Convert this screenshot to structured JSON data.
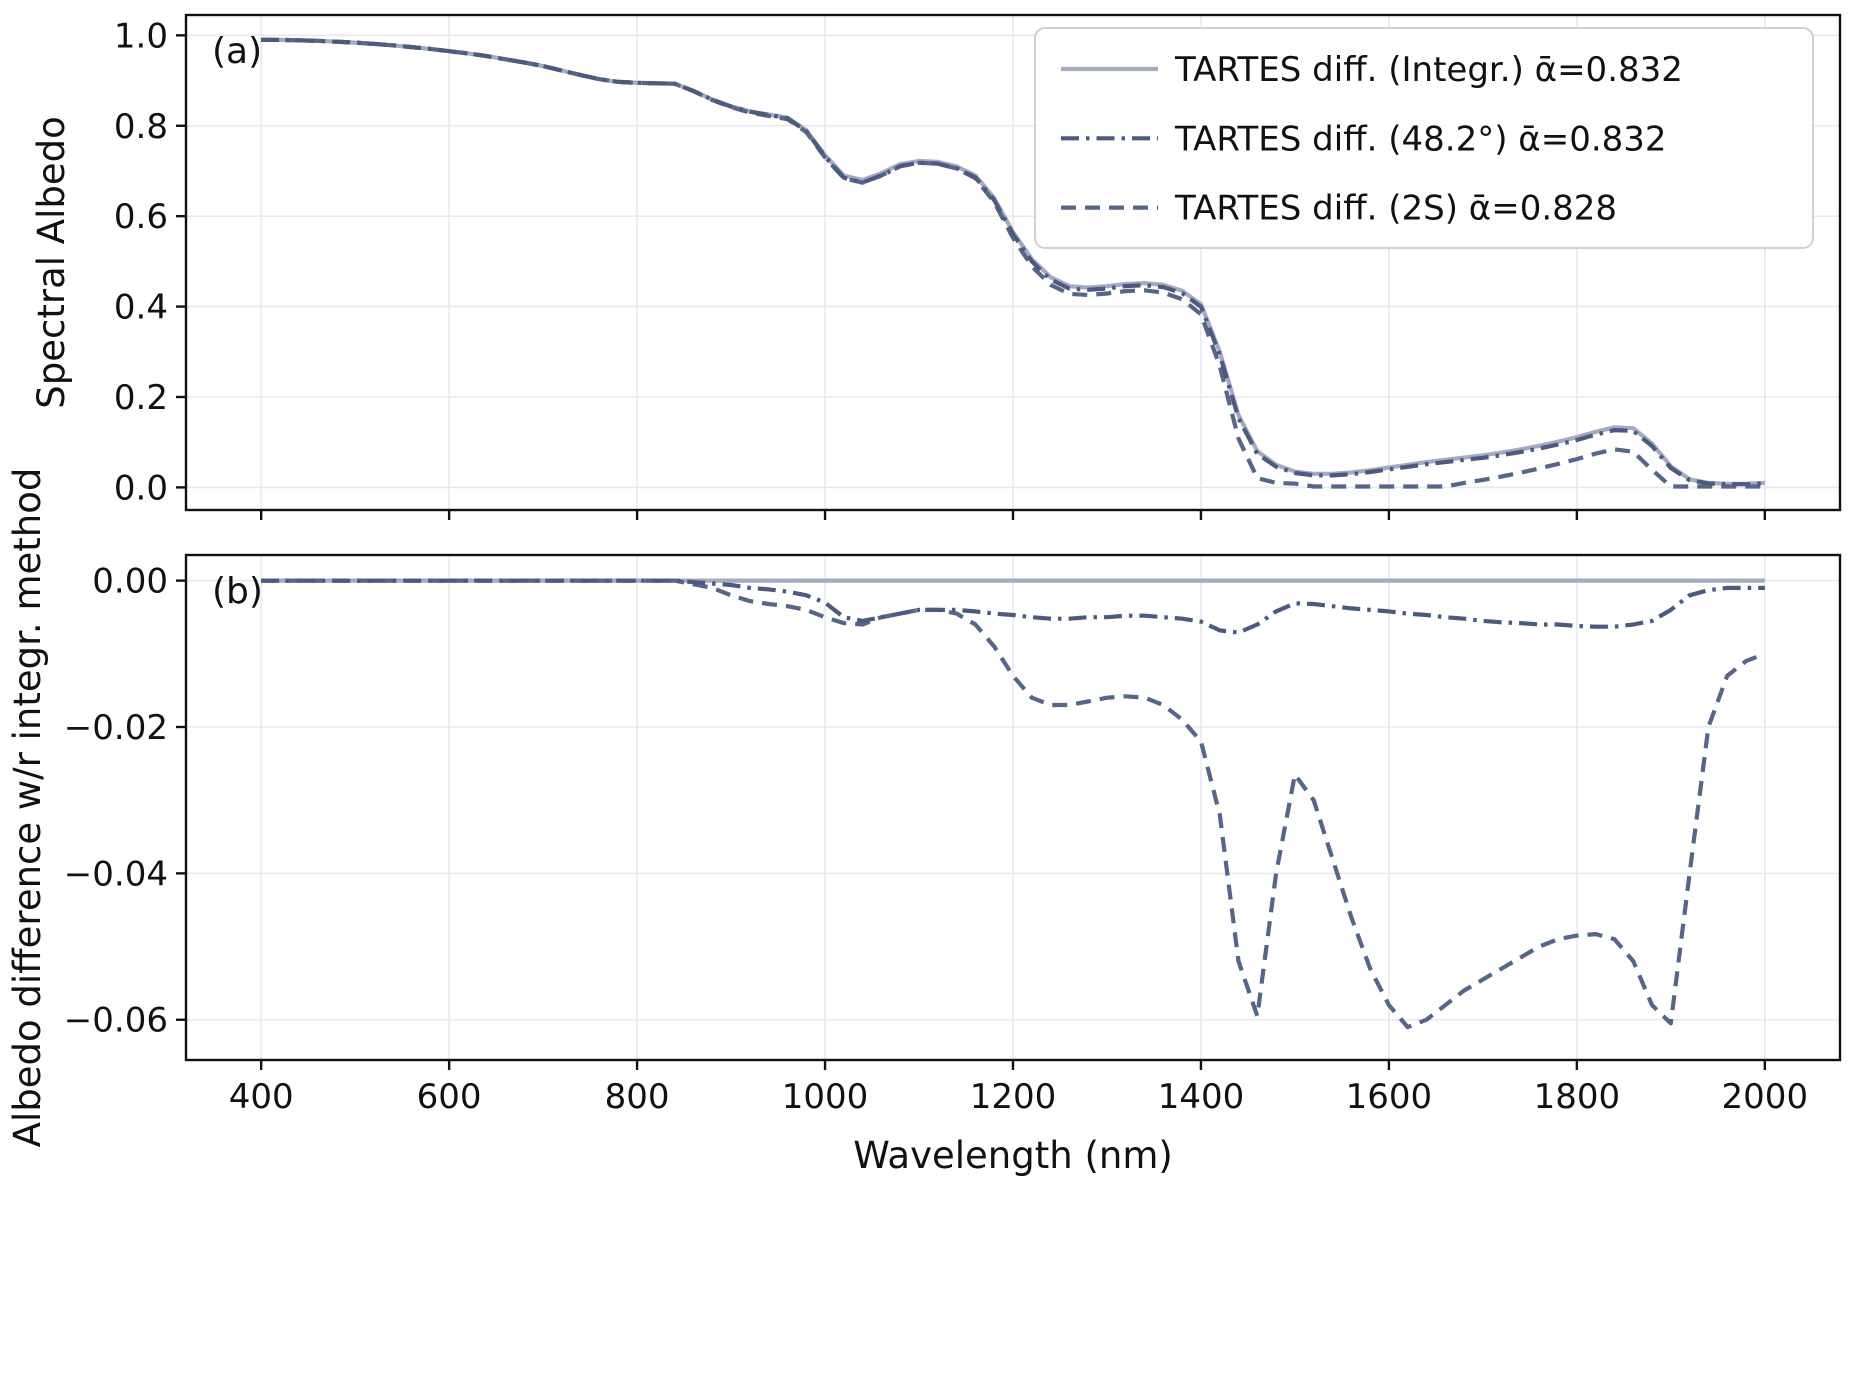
{
  "figure": {
    "xlabel": "Wavelength (nm)",
    "panel_a_label": "(a)",
    "panel_b_label": "(b)",
    "ylabel_a": "Spectral Albedo",
    "ylabel_b": "Albedo difference w/r integr. method"
  },
  "style": {
    "color_integr": "#a3abc2",
    "color_48": "#4b5a7e",
    "color_2s": "#556689",
    "grid_color": "#e8e8f0",
    "spine_color": "#111111",
    "legend_border": "#d0d0d5",
    "legend_fill": "#ffffff"
  },
  "chart_data": [
    {
      "id": "a",
      "type": "line",
      "panel_label": "(a)",
      "ylabel": "Spectral Albedo",
      "xlim": [
        320,
        2080
      ],
      "ylim": [
        -0.05,
        1.045
      ],
      "grid": true,
      "xticks": [
        400,
        600,
        800,
        1000,
        1200,
        1400,
        1600,
        1800,
        2000
      ],
      "xtick_labels": null,
      "yticks": [
        0.0,
        0.2,
        0.4,
        0.6,
        0.8,
        1.0
      ],
      "ytick_labels": [
        "0.0",
        "0.2",
        "0.4",
        "0.6",
        "0.8",
        "1.0"
      ],
      "legend": {
        "position": "upper right",
        "entries": [
          "TARTES diff. (Integr.) ᾱ=0.832",
          "TARTES diff. (48.2°) ᾱ=0.832",
          "TARTES diff. (2S) ᾱ=0.828"
        ]
      },
      "x": [
        400,
        420,
        440,
        460,
        480,
        500,
        520,
        540,
        560,
        580,
        600,
        620,
        640,
        660,
        680,
        700,
        720,
        740,
        760,
        780,
        800,
        820,
        840,
        860,
        880,
        900,
        920,
        940,
        960,
        980,
        1000,
        1020,
        1040,
        1060,
        1080,
        1100,
        1120,
        1140,
        1160,
        1180,
        1200,
        1220,
        1240,
        1260,
        1280,
        1300,
        1320,
        1340,
        1360,
        1380,
        1400,
        1420,
        1440,
        1460,
        1480,
        1500,
        1520,
        1540,
        1560,
        1580,
        1600,
        1620,
        1640,
        1660,
        1680,
        1700,
        1720,
        1740,
        1760,
        1780,
        1800,
        1820,
        1840,
        1860,
        1880,
        1900,
        1920,
        1940,
        1960,
        1980,
        2000
      ],
      "series": [
        {
          "key": "integr",
          "name": "TARTES diff. (Integr.) ᾱ=0.832",
          "style": "solid",
          "color": "#a3abc2",
          "zorder": 1,
          "values": [
            0.99,
            0.99,
            0.989,
            0.988,
            0.986,
            0.984,
            0.981,
            0.978,
            0.974,
            0.97,
            0.965,
            0.96,
            0.954,
            0.947,
            0.94,
            0.932,
            0.922,
            0.912,
            0.903,
            0.897,
            0.895,
            0.894,
            0.893,
            0.877,
            0.858,
            0.843,
            0.832,
            0.825,
            0.818,
            0.79,
            0.735,
            0.69,
            0.68,
            0.695,
            0.715,
            0.722,
            0.72,
            0.71,
            0.69,
            0.64,
            0.565,
            0.505,
            0.465,
            0.445,
            0.442,
            0.445,
            0.45,
            0.452,
            0.448,
            0.435,
            0.405,
            0.3,
            0.16,
            0.08,
            0.05,
            0.035,
            0.03,
            0.03,
            0.033,
            0.038,
            0.044,
            0.05,
            0.056,
            0.061,
            0.066,
            0.071,
            0.077,
            0.084,
            0.092,
            0.101,
            0.111,
            0.123,
            0.133,
            0.131,
            0.097,
            0.047,
            0.018,
            0.01,
            0.008,
            0.008,
            0.01
          ]
        },
        {
          "key": "oblique48",
          "name": "TARTES diff. (48.2°) ᾱ=0.832",
          "style": "dashdot",
          "color": "#4b5a7e",
          "zorder": 3,
          "values": [
            0.99,
            0.99,
            0.989,
            0.988,
            0.986,
            0.984,
            0.981,
            0.978,
            0.974,
            0.97,
            0.965,
            0.96,
            0.954,
            0.947,
            0.94,
            0.932,
            0.922,
            0.912,
            0.903,
            0.897,
            0.895,
            0.894,
            0.893,
            0.8768,
            0.8576,
            0.8424,
            0.831,
            0.8238,
            0.8165,
            0.788,
            0.732,
            0.685,
            0.6745,
            0.69,
            0.7105,
            0.718,
            0.716,
            0.706,
            0.6858,
            0.6355,
            0.5603,
            0.5,
            0.4598,
            0.4398,
            0.437,
            0.44,
            0.4452,
            0.4472,
            0.443,
            0.4298,
            0.3994,
            0.2932,
            0.1529,
            0.074,
            0.0458,
            0.0319,
            0.0268,
            0.0265,
            0.0292,
            0.034,
            0.0398,
            0.0455,
            0.0513,
            0.056,
            0.0608,
            0.0655,
            0.0713,
            0.0782,
            0.086,
            0.095,
            0.1048,
            0.1167,
            0.1267,
            0.125,
            0.0915,
            0.043,
            0.016,
            0.0087,
            0.007,
            0.007,
            0.009
          ]
        },
        {
          "key": "twostream",
          "name": "TARTES diff. (2S) ᾱ=0.828",
          "style": "dashed",
          "color": "#556689",
          "zorder": 2,
          "values": [
            0.99,
            0.99,
            0.989,
            0.988,
            0.986,
            0.984,
            0.981,
            0.978,
            0.974,
            0.97,
            0.965,
            0.96,
            0.954,
            0.947,
            0.94,
            0.932,
            0.922,
            0.912,
            0.903,
            0.897,
            0.895,
            0.894,
            0.893,
            0.8765,
            0.857,
            0.841,
            0.8292,
            0.8218,
            0.8145,
            0.786,
            0.73,
            0.6842,
            0.674,
            0.69,
            0.7105,
            0.718,
            0.716,
            0.7055,
            0.684,
            0.631,
            0.552,
            0.489,
            0.448,
            0.428,
            0.4255,
            0.429,
            0.4342,
            0.436,
            0.431,
            0.416,
            0.383,
            0.268,
            0.108,
            0.0205,
            0.01,
            0.0085,
            0.002,
            0.002,
            0.002,
            0.002,
            0.002,
            0.002,
            0.002,
            0.002,
            0.01,
            0.0165,
            0.024,
            0.0325,
            0.042,
            0.052,
            0.0625,
            0.0747,
            0.084,
            0.079,
            0.039,
            0.002,
            0.002,
            0.002,
            0.002,
            0.002,
            0.002
          ]
        }
      ]
    },
    {
      "id": "b",
      "type": "line",
      "panel_label": "(b)",
      "ylabel": "Albedo difference w/r integr. method",
      "xlabel": "Wavelength (nm)",
      "xlim": [
        320,
        2080
      ],
      "ylim": [
        -0.0655,
        0.0035
      ],
      "grid": true,
      "xticks": [
        400,
        600,
        800,
        1000,
        1200,
        1400,
        1600,
        1800,
        2000
      ],
      "xtick_labels": [
        "400",
        "600",
        "800",
        "1000",
        "1200",
        "1400",
        "1600",
        "1800",
        "2000"
      ],
      "yticks": [
        0.0,
        -0.02,
        -0.04,
        -0.06
      ],
      "ytick_labels": [
        "0.00",
        "−0.02",
        "−0.04",
        "−0.06"
      ],
      "legend": null,
      "x": [
        400,
        420,
        440,
        460,
        480,
        500,
        520,
        540,
        560,
        580,
        600,
        620,
        640,
        660,
        680,
        700,
        720,
        740,
        760,
        780,
        800,
        820,
        840,
        860,
        880,
        900,
        920,
        940,
        960,
        980,
        1000,
        1020,
        1040,
        1060,
        1080,
        1100,
        1120,
        1140,
        1160,
        1180,
        1200,
        1220,
        1240,
        1260,
        1280,
        1300,
        1320,
        1340,
        1360,
        1380,
        1400,
        1420,
        1440,
        1460,
        1480,
        1500,
        1520,
        1540,
        1560,
        1580,
        1600,
        1620,
        1640,
        1660,
        1680,
        1700,
        1720,
        1740,
        1760,
        1780,
        1800,
        1820,
        1840,
        1860,
        1880,
        1900,
        1920,
        1940,
        1960,
        1980,
        2000
      ],
      "series": [
        {
          "key": "integr",
          "name": "TARTES diff. (Integr.) ᾱ=0.832",
          "style": "solid",
          "color": "#a3abc2",
          "zorder": 1,
          "values": [
            0,
            0,
            0,
            0,
            0,
            0,
            0,
            0,
            0,
            0,
            0,
            0,
            0,
            0,
            0,
            0,
            0,
            0,
            0,
            0,
            0,
            0,
            0,
            0,
            0,
            0,
            0,
            0,
            0,
            0,
            0,
            0,
            0,
            0,
            0,
            0,
            0,
            0,
            0,
            0,
            0,
            0,
            0,
            0,
            0,
            0,
            0,
            0,
            0,
            0,
            0,
            0,
            0,
            0,
            0,
            0,
            0,
            0,
            0,
            0,
            0,
            0,
            0,
            0,
            0,
            0,
            0,
            0,
            0,
            0,
            0,
            0,
            0,
            0,
            0,
            0,
            0,
            0,
            0,
            0,
            0
          ]
        },
        {
          "key": "oblique48",
          "name": "TARTES diff. (48.2°) ᾱ=0.832",
          "style": "dashdot",
          "color": "#4b5a7e",
          "zorder": 3,
          "values": [
            0,
            0,
            0,
            0,
            0,
            0,
            0,
            0,
            0,
            0,
            0,
            0,
            0,
            0,
            0,
            0,
            0,
            0,
            0,
            0,
            0,
            0,
            0,
            -0.0002,
            -0.0004,
            -0.0006,
            -0.001,
            -0.0012,
            -0.0015,
            -0.002,
            -0.003,
            -0.005,
            -0.0055,
            -0.005,
            -0.0045,
            -0.004,
            -0.004,
            -0.004,
            -0.0042,
            -0.0045,
            -0.0047,
            -0.005,
            -0.0052,
            -0.0052,
            -0.005,
            -0.005,
            -0.0048,
            -0.0048,
            -0.005,
            -0.0052,
            -0.0056,
            -0.0068,
            -0.0071,
            -0.006,
            -0.0042,
            -0.0031,
            -0.0032,
            -0.0035,
            -0.0038,
            -0.004,
            -0.0042,
            -0.0045,
            -0.0047,
            -0.005,
            -0.0052,
            -0.0055,
            -0.0057,
            -0.0058,
            -0.006,
            -0.006,
            -0.0062,
            -0.0063,
            -0.0063,
            -0.006,
            -0.0055,
            -0.004,
            -0.002,
            -0.0013,
            -0.001,
            -0.001,
            -0.001
          ]
        },
        {
          "key": "twostream",
          "name": "TARTES diff. (2S) ᾱ=0.828",
          "style": "dashed",
          "color": "#556689",
          "zorder": 2,
          "values": [
            0,
            0,
            0,
            0,
            0,
            0,
            0,
            0,
            0,
            0,
            0,
            0,
            0,
            0,
            0,
            0,
            0,
            0,
            0,
            0,
            0,
            0,
            0,
            -0.0005,
            -0.001,
            -0.002,
            -0.0028,
            -0.0032,
            -0.0035,
            -0.004,
            -0.005,
            -0.0058,
            -0.006,
            -0.005,
            -0.0045,
            -0.004,
            -0.004,
            -0.0045,
            -0.006,
            -0.009,
            -0.013,
            -0.016,
            -0.017,
            -0.017,
            -0.0165,
            -0.016,
            -0.0158,
            -0.016,
            -0.017,
            -0.019,
            -0.022,
            -0.032,
            -0.052,
            -0.0595,
            -0.04,
            -0.0265,
            -0.03,
            -0.038,
            -0.046,
            -0.053,
            -0.058,
            -0.061,
            -0.06,
            -0.058,
            -0.056,
            -0.0545,
            -0.053,
            -0.0515,
            -0.05,
            -0.049,
            -0.0485,
            -0.0483,
            -0.049,
            -0.052,
            -0.058,
            -0.0605,
            -0.04,
            -0.02,
            -0.013,
            -0.011,
            -0.01
          ]
        }
      ]
    }
  ]
}
